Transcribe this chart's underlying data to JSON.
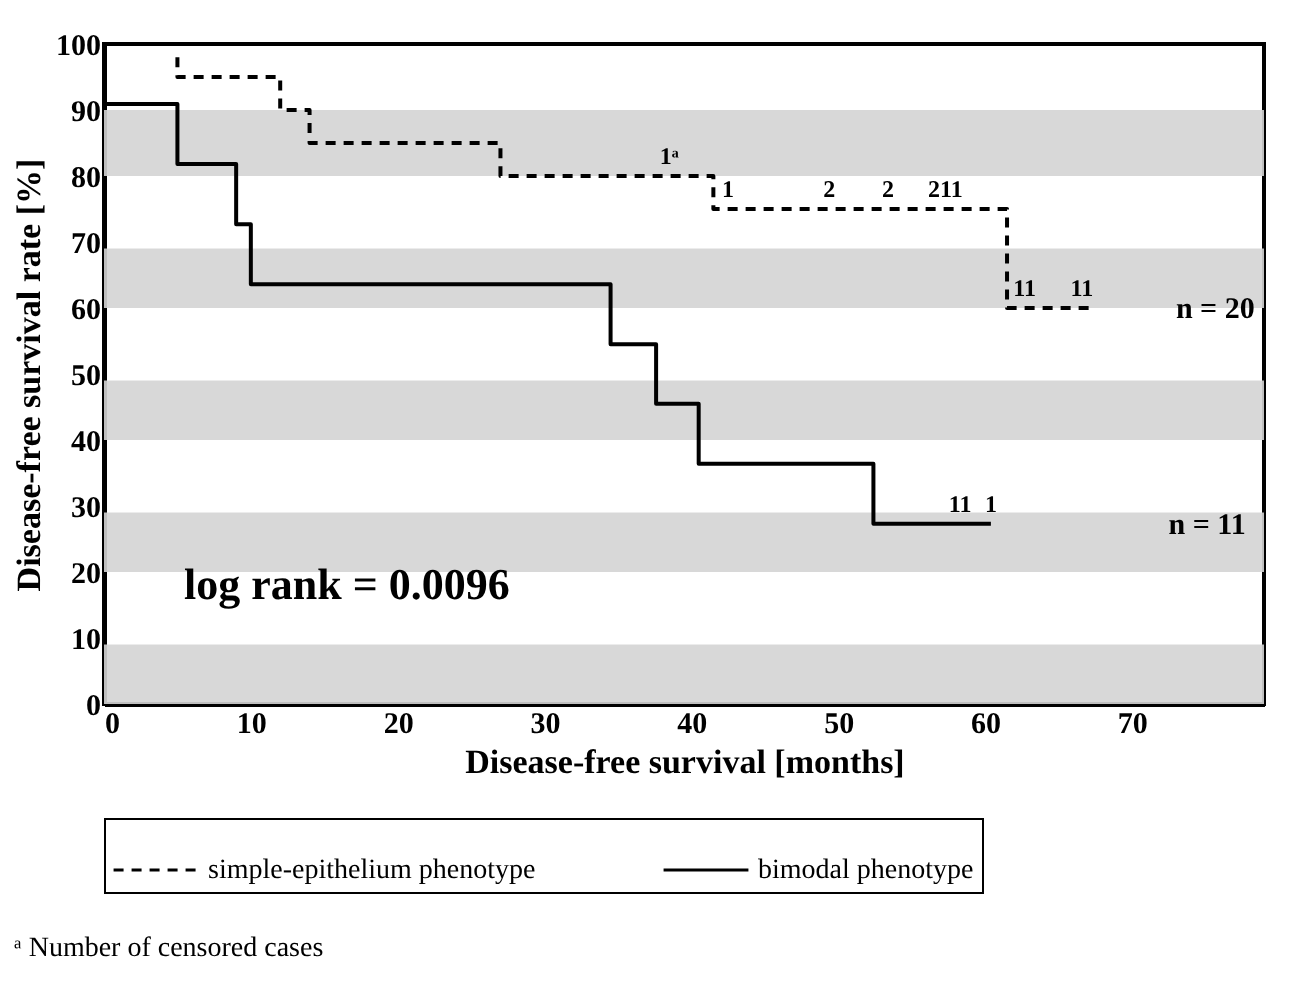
{
  "chart_data": {
    "type": "step",
    "xlabel": "Disease-free survival [months]",
    "ylabel": "Disease-free survival rate [%]",
    "xlim": [
      0,
      79
    ],
    "xticks": [
      0,
      10,
      20,
      30,
      40,
      50,
      60,
      70
    ],
    "ylim": [
      0,
      100
    ],
    "yticks": [
      0,
      10,
      20,
      30,
      40,
      50,
      60,
      70,
      80,
      90,
      100
    ],
    "grid": false,
    "legend": "bottom",
    "marker": "none",
    "series": [
      {
        "name": "simple-epithelium phenotype",
        "color": "#000000",
        "line_style": "dashed",
        "x": [
          5,
          5,
          12,
          14,
          27,
          41.5,
          61.5,
          67.2
        ],
        "values": [
          98,
          95,
          90,
          85,
          80,
          75,
          60,
          60
        ]
      },
      {
        "name": "bimodal phenotype",
        "color": "#000000",
        "line_style": "solid",
        "x": [
          0,
          5,
          9,
          10,
          34.5,
          37.6,
          40.5,
          52.4,
          60.4
        ],
        "values": [
          90.9,
          81.8,
          72.7,
          63.6,
          54.5,
          45.5,
          36.4,
          27.3,
          27.3
        ]
      }
    ],
    "bands": [
      {
        "axis": "y",
        "from": 0,
        "to": 9,
        "color": "#d4d4d4"
      },
      {
        "axis": "y",
        "from": 20,
        "to": 29,
        "color": "#d4d4d4"
      },
      {
        "axis": "y",
        "from": 40,
        "to": 49,
        "color": "#d4d4d4"
      },
      {
        "axis": "y",
        "from": 60,
        "to": 69,
        "color": "#d4d4d4"
      },
      {
        "axis": "y",
        "from": 80,
        "to": 90,
        "color": "#d4d4d4"
      }
    ],
    "annotations": [
      {
        "text": "1ᵃ",
        "x": 38.5,
        "y": 80
      },
      {
        "text": "1",
        "x": 42.5,
        "y": 75
      },
      {
        "text": "2",
        "x": 49.4,
        "y": 75
      },
      {
        "text": "2",
        "x": 53.4,
        "y": 75
      },
      {
        "text": "211",
        "x": 57.3,
        "y": 75
      },
      {
        "text": "11",
        "x": 62.7,
        "y": 60
      },
      {
        "text": "11",
        "x": 66.6,
        "y": 60
      },
      {
        "text": "11",
        "x": 58.3,
        "y": 27.3
      },
      {
        "text": "1",
        "x": 60.4,
        "y": 27.3
      },
      {
        "text": "n = 20",
        "x": 73,
        "y": 60
      },
      "n = 11",
      "log rank = 0.0096",
      "ᵃ Number of censored cases"
    ]
  }
}
